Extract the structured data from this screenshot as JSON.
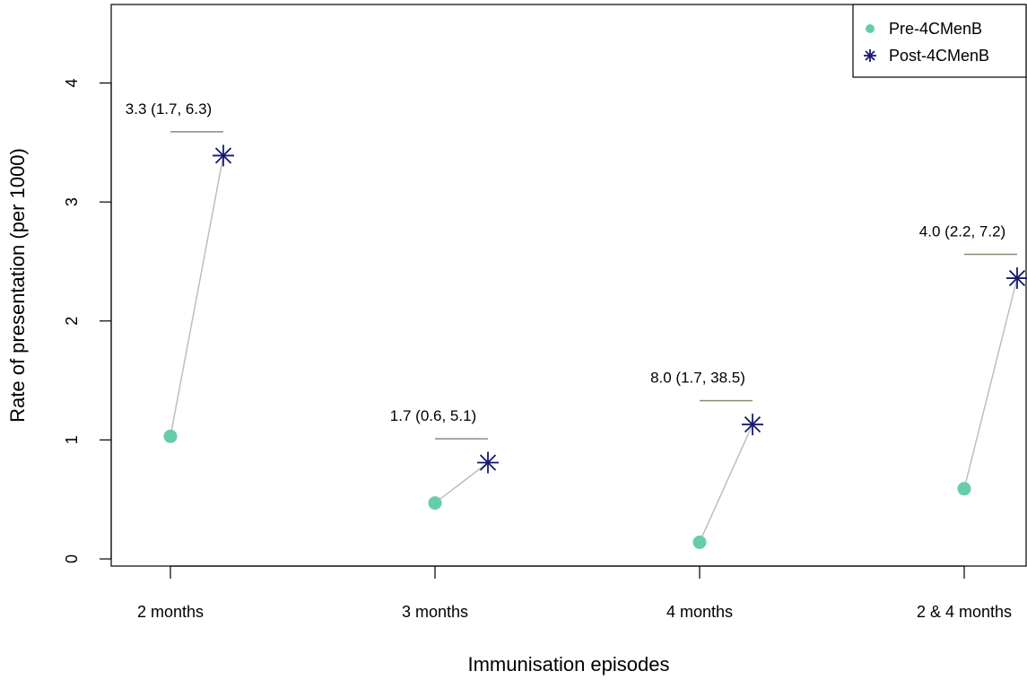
{
  "chart_data": {
    "type": "scatter",
    "title": "",
    "xlabel": "Immunisation episodes",
    "ylabel": "Rate of presentation (per 1000)",
    "categories": [
      "2 months",
      "3 months",
      "4 months",
      "2 & 4 months"
    ],
    "yticks": [
      "0",
      "1",
      "2",
      "3",
      "4"
    ],
    "ylim": [
      -0.06,
      4.66
    ],
    "series": [
      {
        "name": "Pre-4CMenB",
        "marker": "filled-circle",
        "color": "#66CDAA",
        "values": [
          1.03,
          0.47,
          0.14,
          0.59
        ]
      },
      {
        "name": "Post-4CMenB",
        "marker": "asterisk",
        "color": "#191970",
        "values": [
          3.39,
          0.81,
          1.13,
          2.36
        ]
      }
    ],
    "annotations": [
      {
        "category": "2 months",
        "text": "3.3 (1.7, 6.3)",
        "bar_y": 3.59
      },
      {
        "category": "3 months",
        "text": "1.7 (0.6, 5.1)",
        "bar_y": 1.01
      },
      {
        "category": "4 months",
        "text": "8.0 (1.7, 38.5)",
        "bar_y": 1.33
      },
      {
        "category": "2 & 4 months",
        "text": "4.0 (2.2, 7.2)",
        "bar_y": 2.56
      }
    ],
    "connector_color": "#BEBEBE",
    "bracket_color": "#8B8B7A",
    "legend_position": "top-right",
    "grid": false
  }
}
